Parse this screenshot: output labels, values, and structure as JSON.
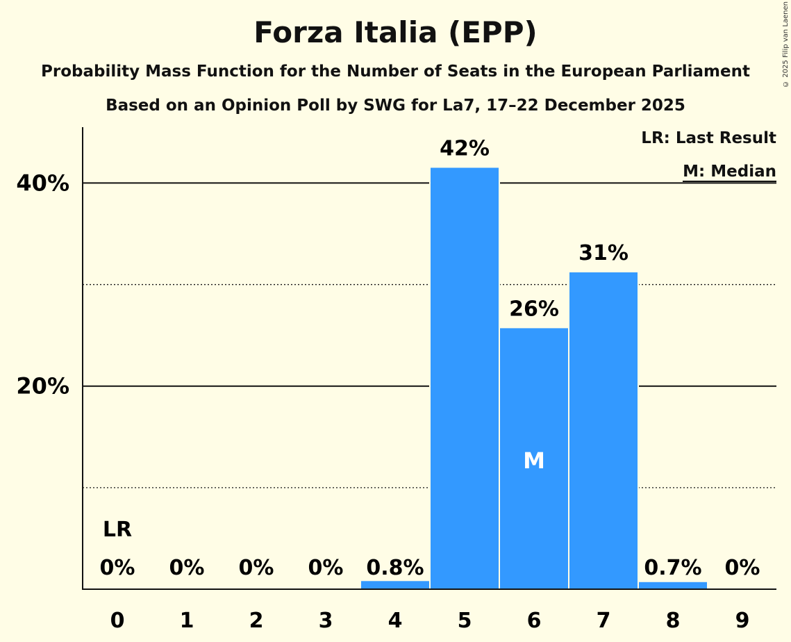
{
  "chart_data": {
    "type": "bar",
    "title": "Forza Italia (EPP)",
    "subtitle": "Probability Mass Function for the Number of Seats in the European Parliament",
    "source": "Based on an Opinion Poll by SWG for La7, 17–22 December 2025",
    "categories": [
      "0",
      "1",
      "2",
      "3",
      "4",
      "5",
      "6",
      "7",
      "8",
      "9"
    ],
    "values": [
      0,
      0,
      0,
      0,
      0.8,
      41.5,
      25.7,
      31.2,
      0.7,
      0
    ],
    "labels": [
      "0%",
      "0%",
      "0%",
      "0%",
      "0.8%",
      "42%",
      "26%",
      "31%",
      "0.7%",
      "0%"
    ],
    "ylim": [
      0,
      45.5
    ],
    "yticks": [
      20,
      40
    ],
    "ytick_labels": [
      "20%",
      "40%"
    ],
    "minor_gridlines": [
      10,
      30
    ],
    "last_result_index": 0,
    "last_result_label": "LR",
    "median_index": 6,
    "median_label": "M",
    "legend": [
      "LR: Last Result",
      "M: Median"
    ],
    "legend_position": "top-right",
    "bar_color": "#3399ff",
    "copyright": "© 2025 Filip van Laenen"
  }
}
